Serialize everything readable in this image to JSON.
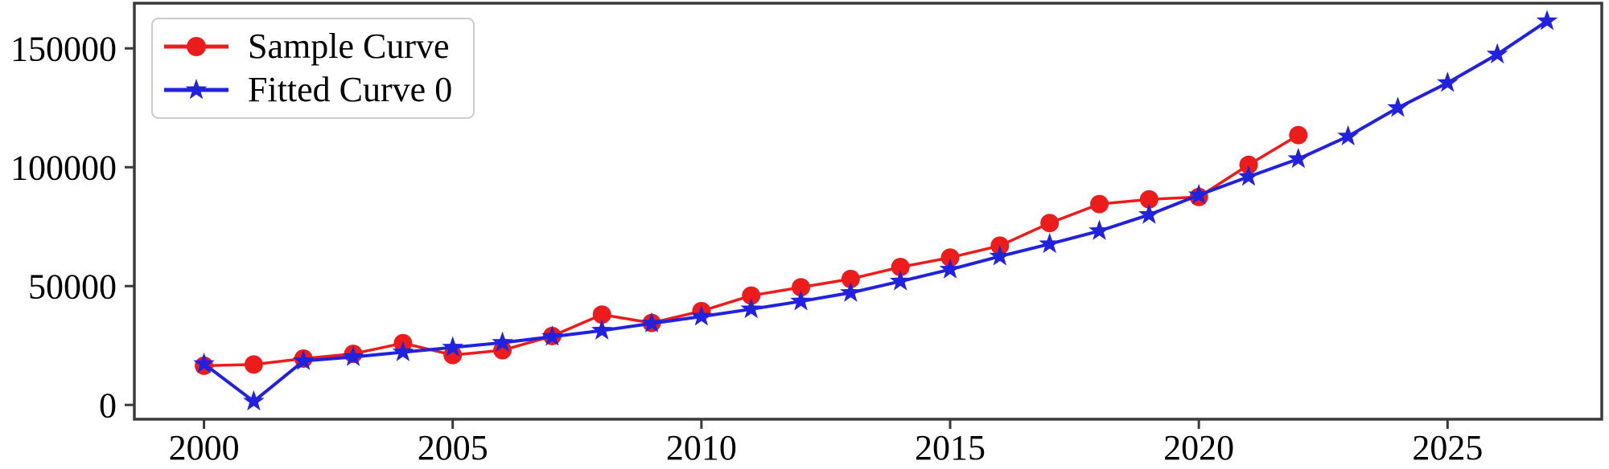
{
  "figure": {
    "background": "#ffffff",
    "border_color": "#3a3a3a"
  },
  "chart_data": {
    "type": "line",
    "title": "",
    "xlabel": "",
    "ylabel": "",
    "grid": false,
    "legend_position": "upper-left",
    "xlim": [
      1998.6,
      2028.1
    ],
    "ylim": [
      -6000,
      169000
    ],
    "x_ticks": [
      2000,
      2005,
      2010,
      2015,
      2020,
      2025
    ],
    "y_ticks": [
      0,
      50000,
      100000,
      150000
    ],
    "axis_color": "#3a3a3a",
    "tick_label_color": "#000000",
    "series": [
      {
        "name": "Sample Curve",
        "color": "#ed1c1c",
        "marker": "circle",
        "x": [
          2000,
          2001,
          2002,
          2003,
          2004,
          2005,
          2006,
          2007,
          2008,
          2009,
          2010,
          2011,
          2012,
          2013,
          2014,
          2015,
          2016,
          2017,
          2018,
          2019,
          2020,
          2021,
          2022
        ],
        "values": [
          16500,
          17000,
          19500,
          21500,
          26000,
          21000,
          23000,
          29000,
          38000,
          34500,
          39500,
          46000,
          49500,
          53000,
          58000,
          62000,
          67000,
          76500,
          84500,
          86500,
          87500,
          101000,
          113500
        ]
      },
      {
        "name": "Fitted Curve 0",
        "color": "#2222dd",
        "marker": "star",
        "x": [
          2000,
          2001,
          2002,
          2003,
          2004,
          2005,
          2006,
          2007,
          2008,
          2009,
          2010,
          2011,
          2012,
          2013,
          2014,
          2015,
          2016,
          2017,
          2018,
          2019,
          2020,
          2021,
          2022,
          2023,
          2024,
          2025,
          2026,
          2027
        ],
        "values": [
          17300,
          1500,
          18500,
          20200,
          22200,
          24200,
          26200,
          28700,
          31300,
          34300,
          37200,
          40300,
          43600,
          47200,
          52000,
          57000,
          62500,
          67700,
          73200,
          80000,
          88300,
          96000,
          103500,
          113000,
          125000,
          135500,
          147500,
          161500
        ]
      }
    ]
  }
}
